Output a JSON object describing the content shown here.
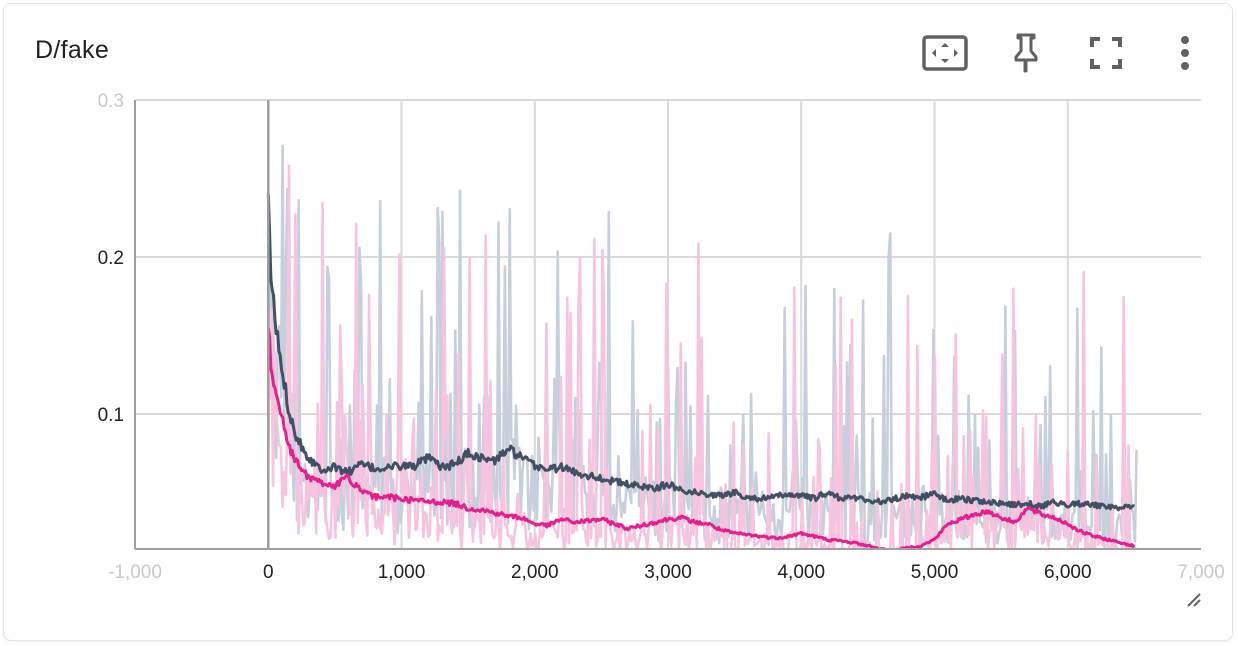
{
  "card": {
    "title": "D/fake"
  },
  "toolbar": {
    "icons": [
      "fit-domain-icon",
      "pin-icon",
      "fullscreen-icon",
      "more-vert-icon"
    ]
  },
  "colors": {
    "dark_line": "#425066",
    "dark_raw": "#c7cfdc",
    "pink_line": "#e91e8c",
    "pink_raw": "#f7c4df",
    "grid": "#d9d9d9",
    "zero_axis": "#9e9e9e"
  },
  "chart_data": {
    "type": "line",
    "title": "D/fake",
    "xlim": [
      -1000,
      7000
    ],
    "ylim": [
      0.014,
      0.3
    ],
    "x_ticks": [
      {
        "value": -1000,
        "label": "-1,000",
        "faded": true
      },
      {
        "value": 0,
        "label": "0"
      },
      {
        "value": 1000,
        "label": "1,000"
      },
      {
        "value": 2000,
        "label": "2,000"
      },
      {
        "value": 3000,
        "label": "3,000"
      },
      {
        "value": 4000,
        "label": "4,000"
      },
      {
        "value": 5000,
        "label": "5,000"
      },
      {
        "value": 6000,
        "label": "6,000"
      },
      {
        "value": 7000,
        "label": "7,000",
        "faded": true
      }
    ],
    "y_ticks": [
      {
        "value": 0.1,
        "label": "0.1"
      },
      {
        "value": 0.2,
        "label": "0.2"
      },
      {
        "value": 0.3,
        "label": "0.3",
        "faded": true
      }
    ],
    "grid": true,
    "series": [
      {
        "color": "#425066",
        "x": [
          0,
          20,
          50,
          100,
          150,
          200,
          300,
          400,
          500,
          600,
          700,
          800,
          900,
          1000,
          1100,
          1200,
          1300,
          1400,
          1500,
          1600,
          1700,
          1800,
          1900,
          2000,
          2100,
          2200,
          2300,
          2400,
          2500,
          2600,
          2700,
          2800,
          2900,
          3000,
          3100,
          3200,
          3300,
          3400,
          3500,
          3600,
          3700,
          3800,
          3900,
          4000,
          4100,
          4200,
          4300,
          4400,
          4500,
          4600,
          4700,
          4800,
          4900,
          5000,
          5100,
          5200,
          5300,
          5400,
          5500,
          5600,
          5700,
          5800,
          5900,
          6000,
          6100,
          6200,
          6300,
          6400,
          6500
        ],
        "values": [
          0.232,
          0.19,
          0.16,
          0.13,
          0.105,
          0.088,
          0.072,
          0.065,
          0.066,
          0.063,
          0.068,
          0.065,
          0.066,
          0.067,
          0.067,
          0.072,
          0.066,
          0.068,
          0.075,
          0.072,
          0.07,
          0.078,
          0.072,
          0.067,
          0.065,
          0.066,
          0.063,
          0.061,
          0.059,
          0.057,
          0.055,
          0.054,
          0.053,
          0.055,
          0.052,
          0.05,
          0.049,
          0.048,
          0.05,
          0.047,
          0.046,
          0.047,
          0.049,
          0.048,
          0.046,
          0.05,
          0.046,
          0.047,
          0.045,
          0.044,
          0.046,
          0.048,
          0.047,
          0.049,
          0.045,
          0.046,
          0.045,
          0.044,
          0.043,
          0.042,
          0.043,
          0.041,
          0.044,
          0.042,
          0.043,
          0.042,
          0.041,
          0.04,
          0.041
        ]
      },
      {
        "color": "#e91e8c",
        "x": [
          0,
          20,
          50,
          100,
          150,
          200,
          300,
          400,
          500,
          600,
          700,
          800,
          900,
          1000,
          1100,
          1200,
          1300,
          1400,
          1500,
          1600,
          1700,
          1800,
          1900,
          2000,
          2100,
          2200,
          2300,
          2400,
          2500,
          2600,
          2700,
          2800,
          2900,
          3000,
          3100,
          3200,
          3300,
          3400,
          3500,
          3600,
          3700,
          3800,
          3900,
          4000,
          4100,
          4200,
          4300,
          4400,
          4500,
          4600,
          4700,
          4800,
          4900,
          5000,
          5100,
          5200,
          5300,
          5400,
          5500,
          5600,
          5700,
          5800,
          5900,
          6000,
          6100,
          6200,
          6300,
          6400,
          6500
        ],
        "values": [
          0.158,
          0.13,
          0.115,
          0.1,
          0.082,
          0.07,
          0.06,
          0.056,
          0.054,
          0.06,
          0.05,
          0.047,
          0.047,
          0.046,
          0.045,
          0.044,
          0.044,
          0.043,
          0.04,
          0.039,
          0.037,
          0.035,
          0.034,
          0.03,
          0.029,
          0.033,
          0.031,
          0.032,
          0.033,
          0.03,
          0.027,
          0.029,
          0.031,
          0.033,
          0.034,
          0.031,
          0.03,
          0.026,
          0.024,
          0.023,
          0.022,
          0.021,
          0.022,
          0.024,
          0.022,
          0.02,
          0.019,
          0.018,
          0.016,
          0.014,
          0.013,
          0.015,
          0.016,
          0.02,
          0.03,
          0.033,
          0.036,
          0.038,
          0.034,
          0.031,
          0.04,
          0.036,
          0.034,
          0.03,
          0.025,
          0.022,
          0.02,
          0.018,
          0.016
        ]
      }
    ]
  }
}
